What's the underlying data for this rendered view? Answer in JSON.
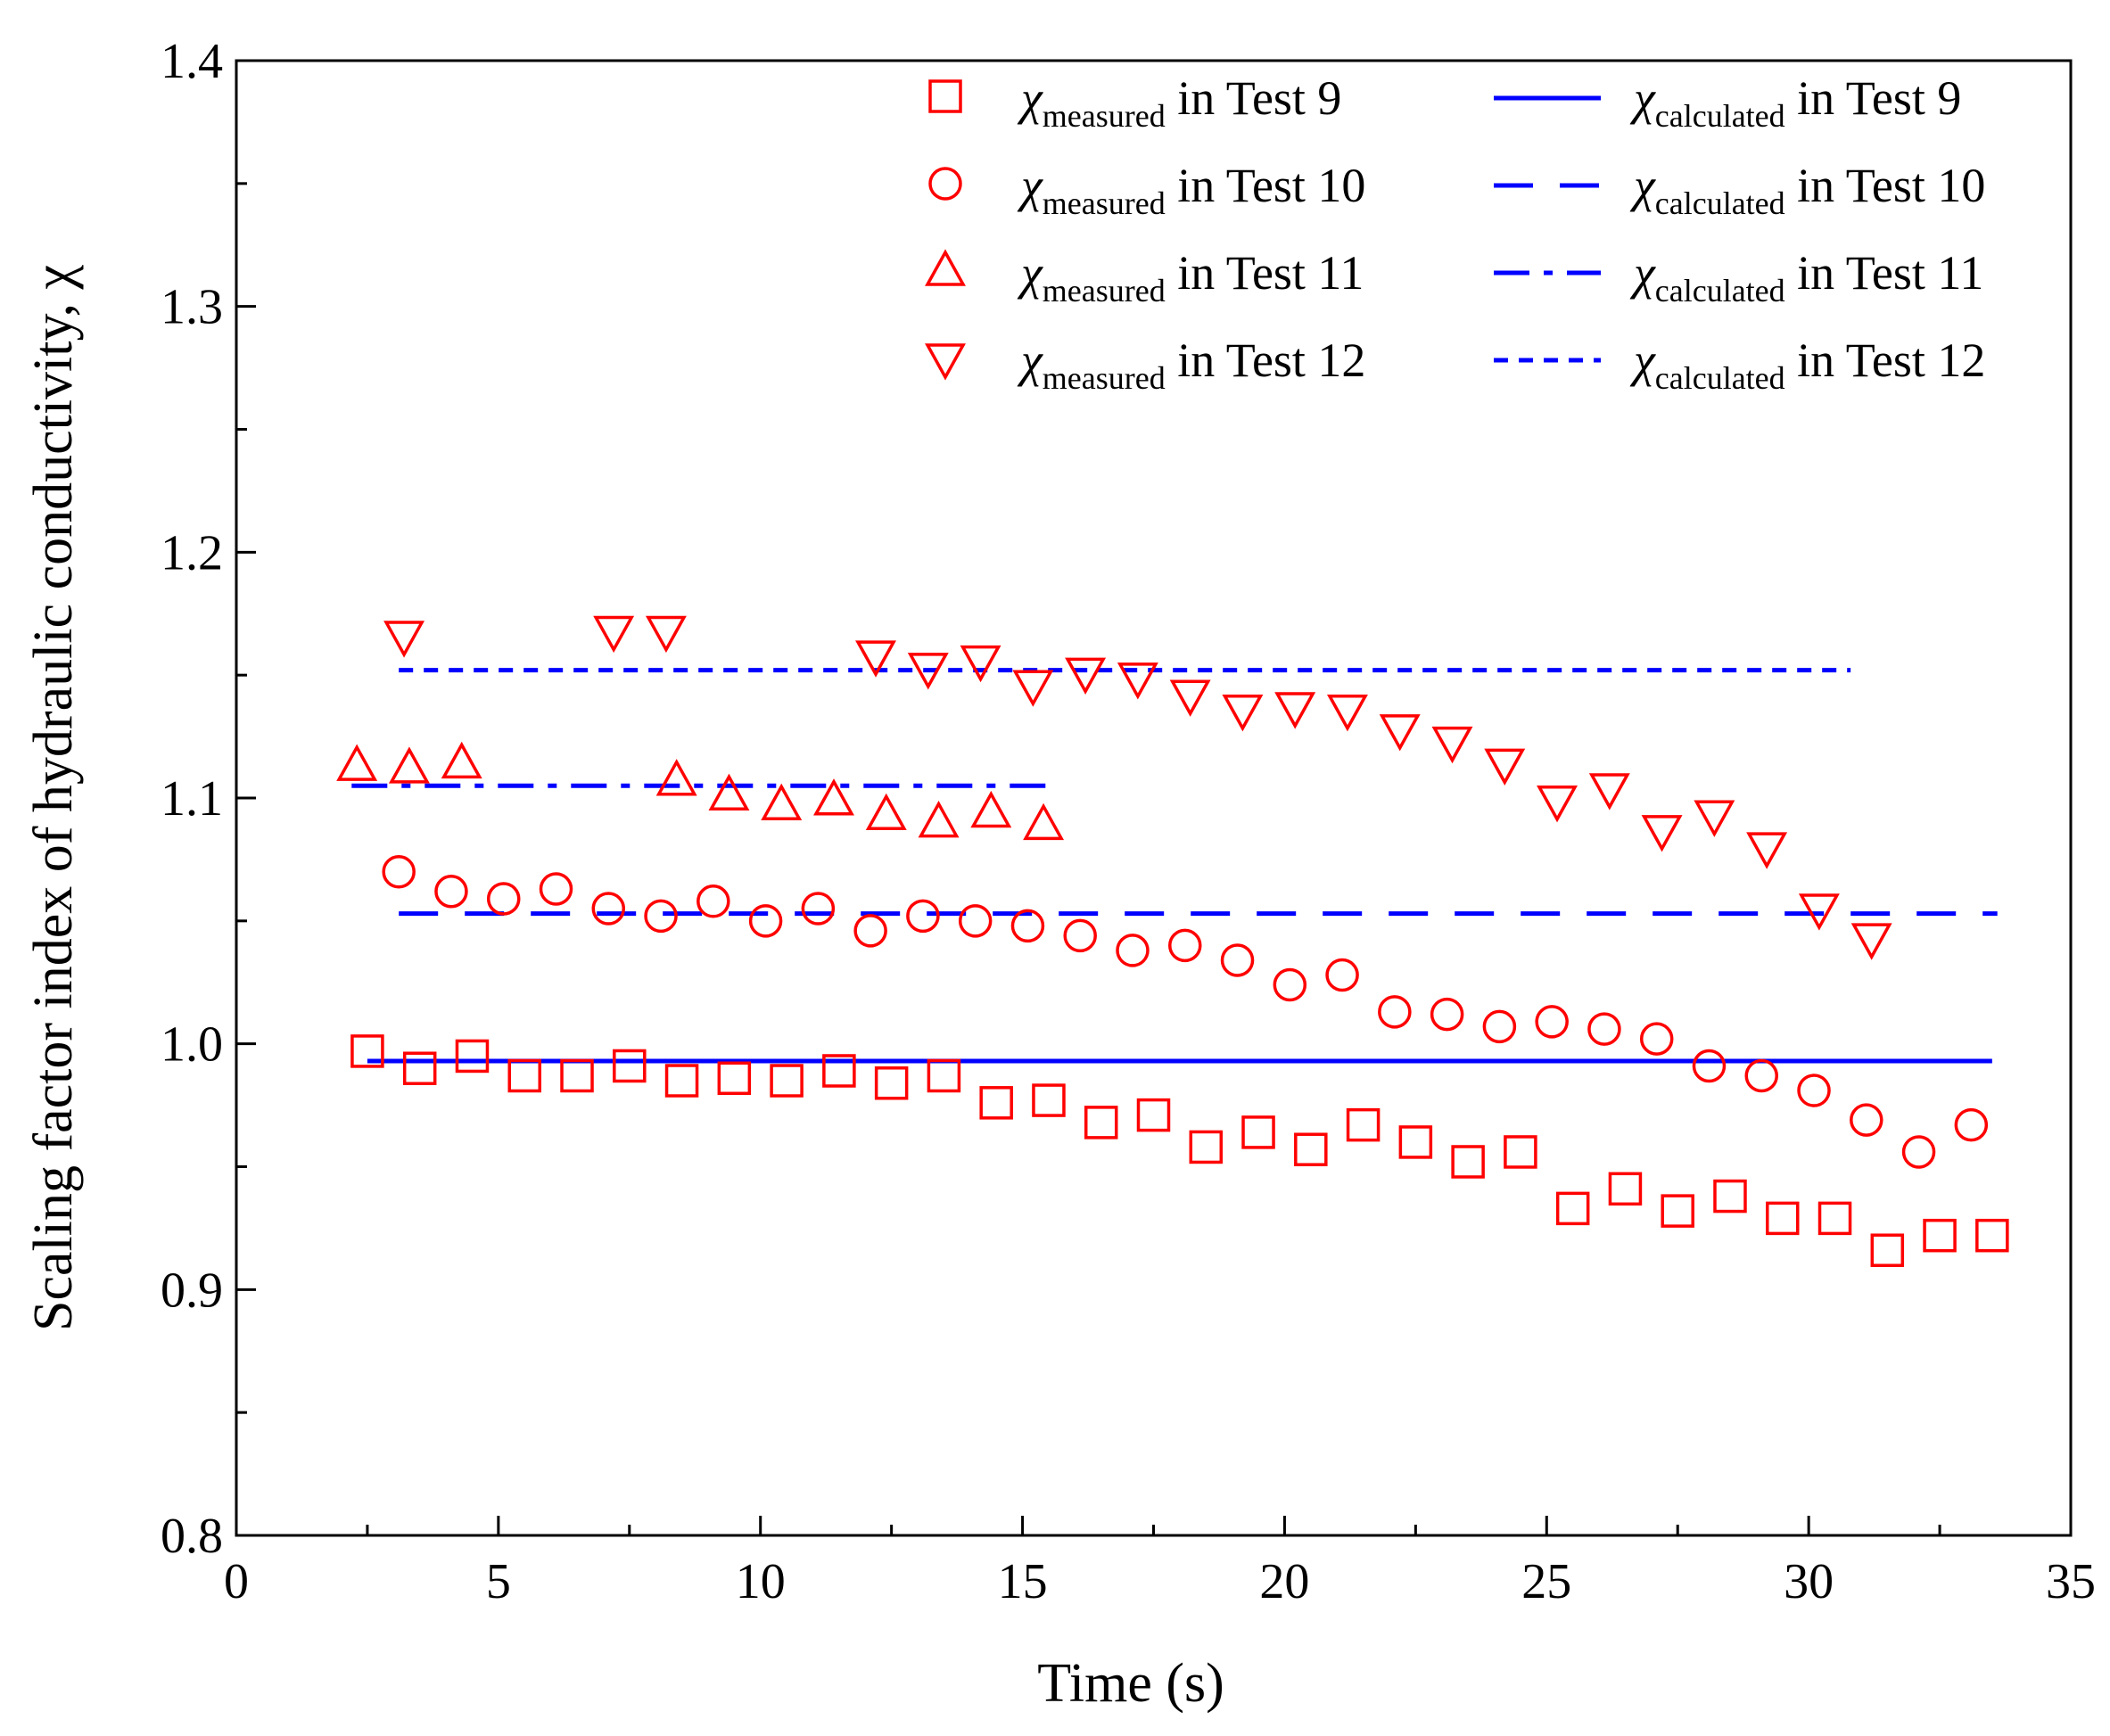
{
  "chart_data": {
    "type": "scatter",
    "title": "",
    "xlabel": "Time (s)",
    "ylabel": "Scaling factor index of hydraulic conductivity, χ",
    "xlim": [
      0,
      35
    ],
    "ylim": [
      0.8,
      1.4
    ],
    "x_ticks": [
      "0",
      "5",
      "10",
      "15",
      "20",
      "25",
      "30",
      "35"
    ],
    "y_ticks": [
      "0.8",
      "0.9",
      "1.0",
      "1.1",
      "1.2",
      "1.3",
      "1.4"
    ],
    "legend_position": "top-right",
    "colors": {
      "measured": "#ff0000",
      "calculated": "#0000ff"
    },
    "measured_series": [
      {
        "name": "Test 9",
        "legend": {
          "symbol": "χ",
          "subscript": "measured",
          "suffix": " in Test 9"
        },
        "marker": "square",
        "x": [
          2.5,
          3.5,
          4.5,
          5.5,
          6.5,
          7.5,
          8.5,
          9.5,
          10.5,
          11.5,
          12.5,
          13.5,
          14.5,
          15.5,
          16.5,
          17.5,
          18.5,
          19.5,
          20.5,
          21.5,
          22.5,
          23.5,
          24.5,
          25.5,
          26.5,
          27.5,
          28.5,
          29.5,
          30.5,
          31.5,
          32.5,
          33.5
        ],
        "y": [
          0.997,
          0.99,
          0.995,
          0.987,
          0.987,
          0.991,
          0.985,
          0.986,
          0.985,
          0.989,
          0.984,
          0.987,
          0.976,
          0.977,
          0.968,
          0.971,
          0.958,
          0.964,
          0.957,
          0.967,
          0.96,
          0.952,
          0.956,
          0.933,
          0.941,
          0.932,
          0.938,
          0.929,
          0.929,
          0.916,
          0.922,
          0.922
        ]
      },
      {
        "name": "Test 10",
        "legend": {
          "symbol": "χ",
          "subscript": "measured",
          "suffix": " in Test 10"
        },
        "marker": "circle",
        "x": [
          3.1,
          4.1,
          5.1,
          6.1,
          7.1,
          8.1,
          9.1,
          10.1,
          11.1,
          12.1,
          13.1,
          14.1,
          15.1,
          16.1,
          17.1,
          18.1,
          19.1,
          20.1,
          21.1,
          22.1,
          23.1,
          24.1,
          25.1,
          26.1,
          27.1,
          28.1,
          29.1,
          30.1,
          31.1,
          32.1,
          33.1
        ],
        "y": [
          1.07,
          1.062,
          1.059,
          1.063,
          1.055,
          1.052,
          1.058,
          1.05,
          1.055,
          1.046,
          1.052,
          1.05,
          1.048,
          1.044,
          1.038,
          1.04,
          1.034,
          1.024,
          1.028,
          1.013,
          1.012,
          1.007,
          1.009,
          1.006,
          1.002,
          0.991,
          0.987,
          0.981,
          0.969,
          0.956,
          0.967
        ]
      },
      {
        "name": "Test 11",
        "legend": {
          "symbol": "χ",
          "subscript": "measured",
          "suffix": " in Test 11"
        },
        "marker": "triangle-up",
        "x": [
          2.3,
          3.3,
          4.3,
          8.4,
          9.4,
          10.4,
          11.4,
          12.4,
          13.4,
          14.4,
          15.4
        ],
        "y": [
          1.113,
          1.112,
          1.114,
          1.107,
          1.101,
          1.097,
          1.099,
          1.093,
          1.09,
          1.094,
          1.089
        ]
      },
      {
        "name": "Test 12",
        "legend": {
          "symbol": "χ",
          "subscript": "measured",
          "suffix": " in Test 12"
        },
        "marker": "triangle-down",
        "x": [
          3.2,
          7.2,
          8.2,
          12.2,
          13.2,
          14.2,
          15.2,
          16.2,
          17.2,
          18.2,
          19.2,
          20.2,
          21.2,
          22.2,
          23.2,
          24.2,
          25.2,
          26.2,
          27.2,
          28.2,
          29.2,
          30.2,
          31.2
        ],
        "y": [
          1.166,
          1.168,
          1.168,
          1.158,
          1.153,
          1.156,
          1.146,
          1.151,
          1.149,
          1.142,
          1.136,
          1.137,
          1.136,
          1.128,
          1.123,
          1.114,
          1.099,
          1.104,
          1.087,
          1.093,
          1.08,
          1.055,
          1.043
        ]
      }
    ],
    "calculated_series": [
      {
        "name": "Test 9",
        "legend": {
          "symbol": "χ",
          "subscript": "calculated",
          "suffix": " in Test 9"
        },
        "dash": "solid",
        "x": [
          2.5,
          33.5
        ],
        "y": [
          0.993,
          0.993
        ]
      },
      {
        "name": "Test 10",
        "legend": {
          "symbol": "χ",
          "subscript": "calculated",
          "suffix": " in Test 10"
        },
        "dash": "dash",
        "x": [
          3.1,
          33.6
        ],
        "y": [
          1.053,
          1.053
        ]
      },
      {
        "name": "Test 11",
        "legend": {
          "symbol": "χ",
          "subscript": "calculated",
          "suffix": " in Test 11"
        },
        "dash": "dashdot",
        "x": [
          2.2,
          15.5
        ],
        "y": [
          1.105,
          1.105
        ]
      },
      {
        "name": "Test 12",
        "legend": {
          "symbol": "χ",
          "subscript": "calculated",
          "suffix": " in Test 12"
        },
        "dash": "dot",
        "x": [
          3.1,
          30.8
        ],
        "y": [
          1.152,
          1.152
        ]
      }
    ]
  }
}
